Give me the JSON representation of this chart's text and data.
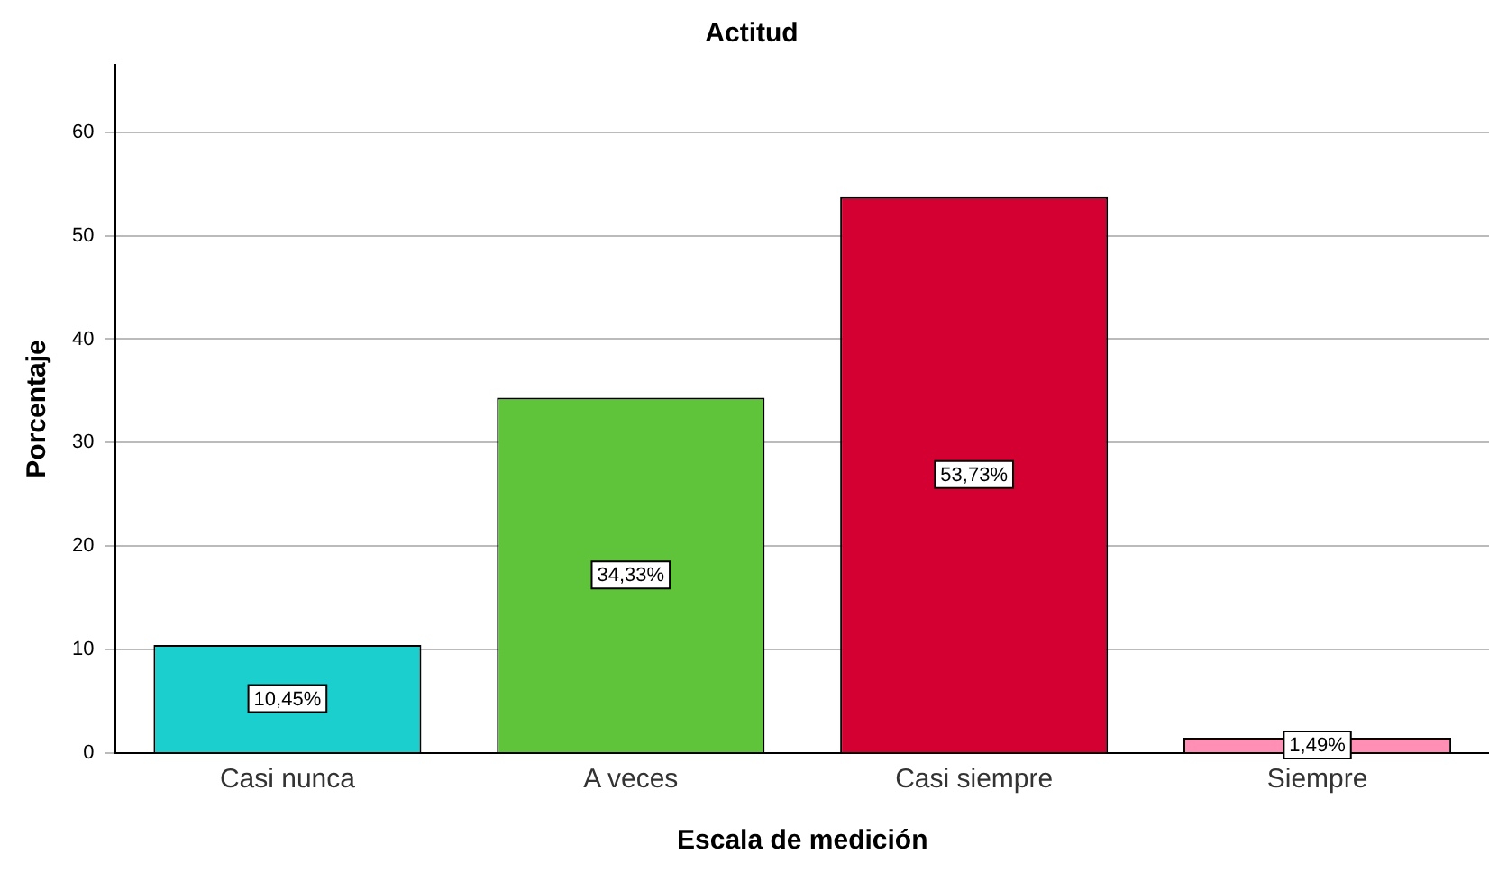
{
  "chart_data": {
    "type": "bar",
    "title": "Actitud",
    "xlabel": "Escala de medición",
    "ylabel": "Porcentaje",
    "categories": [
      "Casi nunca",
      "A veces",
      "Casi siempre",
      "Siempre"
    ],
    "values": [
      10.45,
      34.33,
      53.73,
      1.49
    ],
    "colors": [
      "#1ccfcf",
      "#5fc43a",
      "#d50032",
      "#ff8fb4"
    ],
    "value_labels": [
      "10,45%",
      "34,33%",
      "53,73%",
      "1,49%"
    ],
    "ylim": [
      0,
      66.5
    ],
    "yticks": [
      0,
      10,
      20,
      30,
      40,
      50,
      60
    ],
    "grid": "y",
    "legend": false
  }
}
